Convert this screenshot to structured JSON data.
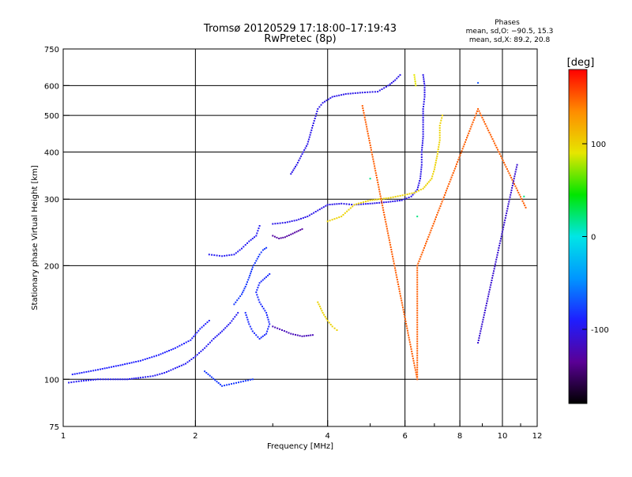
{
  "chart_data": {
    "type": "scatter",
    "title": "Tromsø 20120529 17:18:00–17:19:43",
    "subtitle": "RwPretec (8p)",
    "xlabel": "Frequency [MHz]",
    "ylabel": "Stationary phase Virtual Height [km]",
    "x_scale": "log",
    "y_scale": "log",
    "xlim": [
      1,
      12
    ],
    "ylim": [
      75,
      750
    ],
    "x_ticks": [
      1,
      2,
      4,
      6,
      8,
      10,
      12
    ],
    "y_ticks": [
      75,
      100,
      200,
      300,
      400,
      500,
      600,
      750
    ],
    "x_gridlines": [
      2,
      4,
      6,
      8,
      10
    ],
    "y_gridlines": [
      100,
      200,
      300,
      400,
      500,
      600
    ],
    "grid": true,
    "phases": {
      "title": "Phases",
      "line1": "mean, sd,O: −90.5, 15.3",
      "line2": "mean, sd,X: 89.2, 20.8"
    },
    "colorbar": {
      "label": "[deg]",
      "min": -180,
      "max": 180,
      "ticks": [
        100,
        0,
        -100
      ],
      "colors": [
        "#000000",
        "#5a0096",
        "#1e1eff",
        "#0096ff",
        "#00e6e6",
        "#00e600",
        "#e6e600",
        "#ff8c00",
        "#ff0000"
      ]
    },
    "series": [
      {
        "phase": -95,
        "points": [
          [
            1.03,
            98
          ],
          [
            1.1,
            99
          ],
          [
            1.2,
            100
          ],
          [
            1.3,
            100
          ],
          [
            1.4,
            100
          ],
          [
            1.5,
            101
          ],
          [
            1.6,
            102
          ],
          [
            1.7,
            104
          ],
          [
            1.8,
            107
          ],
          [
            1.9,
            110
          ],
          [
            2.0,
            115
          ],
          [
            2.1,
            121
          ],
          [
            2.2,
            128
          ],
          [
            2.3,
            134
          ],
          [
            2.4,
            141
          ],
          [
            2.5,
            150
          ]
        ]
      },
      {
        "phase": -90,
        "points": [
          [
            1.05,
            103
          ],
          [
            1.2,
            106
          ],
          [
            1.35,
            109
          ],
          [
            1.5,
            112
          ],
          [
            1.65,
            116
          ],
          [
            1.8,
            121
          ],
          [
            1.95,
            127
          ],
          [
            2.05,
            136
          ],
          [
            2.15,
            143
          ]
        ]
      },
      {
        "phase": -80,
        "points": [
          [
            2.45,
            158
          ],
          [
            2.55,
            168
          ],
          [
            2.6,
            176
          ],
          [
            2.65,
            186
          ],
          [
            2.7,
            198
          ],
          [
            2.75,
            206
          ],
          [
            2.8,
            214
          ],
          [
            2.85,
            220
          ],
          [
            2.9,
            223
          ]
        ]
      },
      {
        "phase": -85,
        "points": [
          [
            2.6,
            150
          ],
          [
            2.65,
            140
          ],
          [
            2.7,
            134
          ],
          [
            2.8,
            128
          ],
          [
            2.9,
            132
          ],
          [
            2.95,
            140
          ],
          [
            2.9,
            150
          ],
          [
            2.8,
            160
          ],
          [
            2.75,
            170
          ],
          [
            2.8,
            180
          ],
          [
            2.95,
            190
          ]
        ]
      },
      {
        "phase": -95,
        "points": [
          [
            2.15,
            214
          ],
          [
            2.3,
            212
          ],
          [
            2.45,
            214
          ],
          [
            2.55,
            222
          ],
          [
            2.65,
            232
          ],
          [
            2.75,
            240
          ],
          [
            2.8,
            255
          ]
        ]
      },
      {
        "phase": -130,
        "points": [
          [
            3.0,
            240
          ],
          [
            3.1,
            236
          ],
          [
            3.2,
            238
          ],
          [
            3.3,
            242
          ],
          [
            3.4,
            246
          ],
          [
            3.5,
            250
          ]
        ]
      },
      {
        "phase": -100,
        "points": [
          [
            3.0,
            258
          ],
          [
            3.2,
            260
          ],
          [
            3.4,
            264
          ],
          [
            3.6,
            270
          ],
          [
            3.8,
            280
          ],
          [
            4.0,
            290
          ],
          [
            4.3,
            292
          ],
          [
            4.6,
            290
          ],
          [
            5.0,
            292
          ],
          [
            5.5,
            295
          ],
          [
            5.9,
            298
          ],
          [
            6.2,
            305
          ],
          [
            6.4,
            318
          ],
          [
            6.5,
            340
          ],
          [
            6.55,
            370
          ],
          [
            6.55,
            400
          ],
          [
            6.6,
            440
          ],
          [
            6.6,
            480
          ],
          [
            6.6,
            520
          ],
          [
            6.65,
            560
          ],
          [
            6.65,
            600
          ],
          [
            6.6,
            640
          ]
        ]
      },
      {
        "phase": -100,
        "points": [
          [
            3.3,
            350
          ],
          [
            3.4,
            370
          ],
          [
            3.5,
            395
          ],
          [
            3.6,
            420
          ],
          [
            3.7,
            470
          ],
          [
            3.8,
            520
          ],
          [
            3.9,
            540
          ],
          [
            4.1,
            560
          ],
          [
            4.4,
            570
          ],
          [
            4.8,
            575
          ],
          [
            5.2,
            578
          ],
          [
            5.5,
            600
          ],
          [
            5.7,
            620
          ],
          [
            5.85,
            640
          ]
        ]
      },
      {
        "phase": -120,
        "points": [
          [
            3.0,
            138
          ],
          [
            3.15,
            135
          ],
          [
            3.3,
            132
          ],
          [
            3.5,
            130
          ],
          [
            3.7,
            131
          ]
        ]
      },
      {
        "phase": 100,
        "points": [
          [
            3.8,
            160
          ],
          [
            3.9,
            150
          ],
          [
            4.0,
            143
          ],
          [
            4.1,
            138
          ],
          [
            4.2,
            135
          ]
        ]
      },
      {
        "phase": 100,
        "points": [
          [
            4.0,
            262
          ],
          [
            4.3,
            270
          ],
          [
            4.6,
            290
          ],
          [
            5.0,
            298
          ],
          [
            5.5,
            302
          ],
          [
            6.0,
            308
          ],
          [
            6.3,
            312
          ],
          [
            6.6,
            320
          ],
          [
            6.9,
            340
          ],
          [
            7.0,
            360
          ],
          [
            7.1,
            390
          ],
          [
            7.2,
            430
          ],
          [
            7.2,
            470
          ],
          [
            7.3,
            500
          ]
        ]
      },
      {
        "phase": 90,
        "points": [
          [
            6.3,
            640
          ],
          [
            6.35,
            600
          ]
        ]
      },
      {
        "phase": -80,
        "points": [
          [
            2.1,
            105
          ],
          [
            2.3,
            96
          ],
          [
            2.7,
            100
          ]
        ]
      },
      {
        "phase": 150,
        "points": [
          [
            4.8,
            530
          ],
          [
            6.4,
            100
          ],
          [
            6.4,
            200
          ],
          [
            8.8,
            520
          ],
          [
            11.3,
            285
          ]
        ]
      },
      {
        "phase": 20,
        "points": [
          [
            5.0,
            340
          ],
          [
            6.4,
            270
          ],
          [
            11.2,
            305
          ]
        ]
      },
      {
        "phase": -70,
        "points": [
          [
            8.8,
            610
          ]
        ]
      },
      {
        "phase": -110,
        "points": [
          [
            8.8,
            125
          ],
          [
            10.8,
            370
          ]
        ]
      }
    ]
  }
}
